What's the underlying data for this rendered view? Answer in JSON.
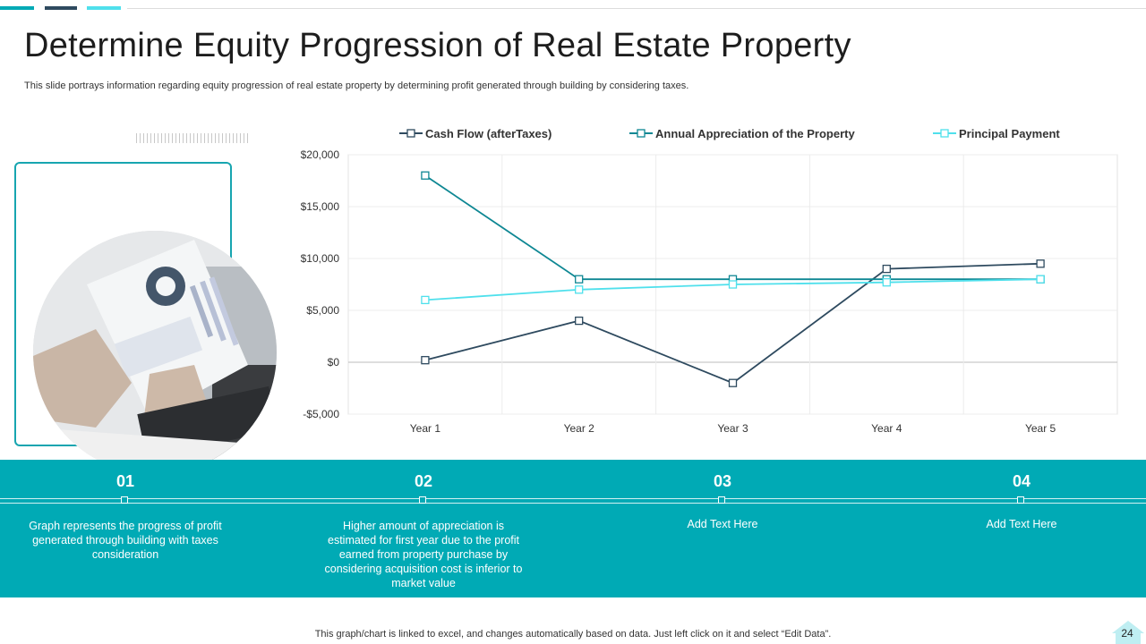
{
  "slide": {
    "title": "Determine Equity Progression of Real Estate Property",
    "subtitle": "This slide portrays information regarding equity progression of real estate property by determining profit generated through building by considering taxes.",
    "footer_note": "This graph/chart is linked to excel, and changes automatically based on data. Just left click on it and select “Edit Data”.",
    "page_number": "24"
  },
  "colors": {
    "accent_teal": "#00aab5",
    "accent_dark": "#2e4a5f",
    "accent_light": "#4fe0ec",
    "frame": "#17a5b0"
  },
  "steps": [
    {
      "num": "01",
      "text": "Graph represents the progress of profit generated through building with taxes consideration"
    },
    {
      "num": "02",
      "text": "Higher amount of appreciation is estimated for first year due to the profit earned from property purchase by considering acquisition cost is inferior to market value"
    },
    {
      "num": "03",
      "text": "Add Text Here"
    },
    {
      "num": "04",
      "text": "Add Text Here"
    }
  ],
  "chart_data": {
    "type": "line",
    "categories": [
      "Year 1",
      "Year 2",
      "Year 3",
      "Year 4",
      "Year 5"
    ],
    "ylim": [
      -5000,
      20000
    ],
    "yticks": [
      -5000,
      0,
      5000,
      10000,
      15000,
      20000
    ],
    "ytick_labels": [
      "-$5,000",
      "$0",
      "$5,000",
      "$10,000",
      "$15,000",
      "$20,000"
    ],
    "grid": true,
    "legend_position": "top",
    "series": [
      {
        "name": "Cash Flow (afterTaxes)",
        "color": "#2e4a5f",
        "values": [
          200,
          4000,
          -2000,
          9000,
          9500
        ]
      },
      {
        "name": "Annual Appreciation of the Property",
        "color": "#0e8793",
        "values": [
          18000,
          8000,
          8000,
          8000,
          8000
        ]
      },
      {
        "name": "Principal Payment",
        "color": "#4fe0ec",
        "values": [
          6000,
          7000,
          7500,
          7700,
          8000
        ]
      }
    ]
  }
}
